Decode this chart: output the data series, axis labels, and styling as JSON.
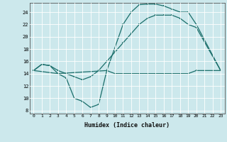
{
  "xlabel": "Humidex (Indice chaleur)",
  "background_color": "#cce8ec",
  "grid_color": "#ffffff",
  "line_color": "#1a6e6a",
  "xlim": [
    -0.5,
    23.5
  ],
  "ylim": [
    7.5,
    25.5
  ],
  "xticks": [
    0,
    1,
    2,
    3,
    4,
    5,
    6,
    7,
    8,
    9,
    10,
    11,
    12,
    13,
    14,
    15,
    16,
    17,
    18,
    19,
    20,
    21,
    22,
    23
  ],
  "yticks": [
    8,
    10,
    12,
    14,
    16,
    18,
    20,
    22,
    24
  ],
  "line1_x": [
    0,
    1,
    2,
    3,
    4,
    5,
    6,
    7,
    8,
    9,
    11,
    12,
    13,
    14,
    15,
    16,
    17,
    18,
    19,
    20,
    23
  ],
  "line1_y": [
    14.5,
    15.5,
    15.3,
    14.0,
    13.3,
    10.0,
    9.5,
    8.5,
    9.0,
    14.5,
    22.0,
    24.0,
    25.2,
    25.3,
    25.3,
    25.0,
    24.5,
    24.0,
    24.0,
    22.0,
    14.5
  ],
  "line2_x": [
    0,
    1,
    2,
    3,
    4,
    5,
    6,
    7,
    8,
    9,
    10,
    11,
    12,
    13,
    14,
    15,
    16,
    17,
    18,
    19,
    20,
    23
  ],
  "line2_y": [
    14.5,
    15.5,
    15.3,
    14.5,
    14.0,
    13.5,
    13.0,
    13.5,
    14.5,
    16.0,
    17.5,
    19.0,
    20.5,
    22.0,
    23.0,
    23.5,
    23.5,
    23.5,
    23.0,
    22.0,
    21.5,
    14.5
  ],
  "line3_x": [
    0,
    3,
    9,
    10,
    13,
    14,
    15,
    16,
    17,
    18,
    19,
    20,
    23
  ],
  "line3_y": [
    14.5,
    14.0,
    14.5,
    14.0,
    14.0,
    14.0,
    14.0,
    14.0,
    14.0,
    14.0,
    14.0,
    14.5,
    14.5
  ]
}
